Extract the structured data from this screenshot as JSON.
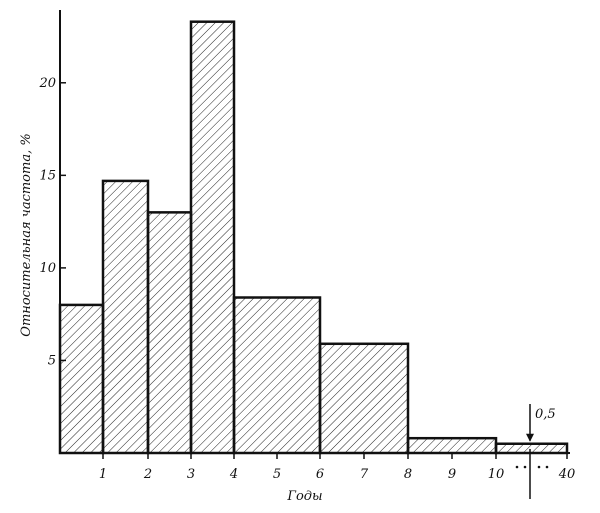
{
  "chart_data": {
    "type": "bar",
    "title": "",
    "xlabel": "Годы",
    "ylabel": "Относительная частота, %",
    "ylim": [
      0,
      23.5
    ],
    "y_ticks": [
      5,
      10,
      15,
      20
    ],
    "x_tick_labels": [
      "1",
      "2",
      "3",
      "4",
      "5",
      "6",
      "7",
      "8",
      "9",
      "10",
      "40"
    ],
    "grid": false,
    "legend": "none",
    "bins": [
      {
        "from": 0,
        "to": 1,
        "value": 8.0
      },
      {
        "from": 1,
        "to": 2,
        "value": 14.7
      },
      {
        "from": 2,
        "to": 3,
        "value": 13.0
      },
      {
        "from": 3,
        "to": 4,
        "value": 23.3
      },
      {
        "from": 4,
        "to": 6,
        "value": 8.4
      },
      {
        "from": 6,
        "to": 8,
        "value": 5.9
      },
      {
        "from": 8,
        "to": 10,
        "value": 0.8
      },
      {
        "from": 10,
        "to": 40,
        "value": 0.5
      }
    ],
    "annotation": {
      "label": "0,5",
      "bin_index": 7
    },
    "colors": {
      "ink": "#111111",
      "hatch": "#222222",
      "background": "#ffffff"
    }
  }
}
